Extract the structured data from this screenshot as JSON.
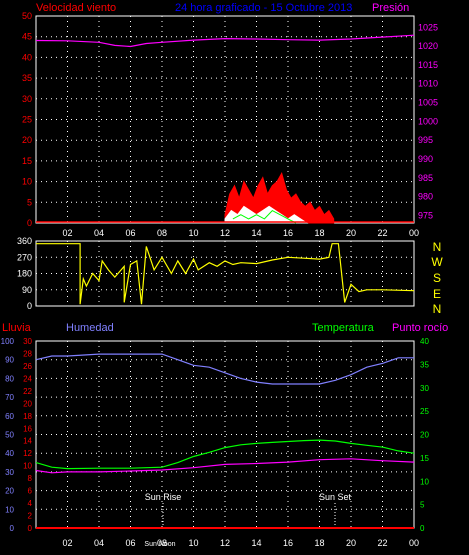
{
  "header": {
    "wind_label": "Velocidad viento",
    "title": "24 hora graficado - 15 Octubre 2013",
    "pressure_label": "Presión"
  },
  "middle": {
    "compass": [
      "N",
      "W",
      "S",
      "E",
      "N"
    ]
  },
  "bottom_header": {
    "rain_label": "Lluvia",
    "humidity_label": "Humedad",
    "temp_label": "Temperatura",
    "dew_label": "Punto rocío"
  },
  "annotations": {
    "sunrise": "Sun Rise",
    "sunset": "Sun Set",
    "noon": "Sun Noon"
  },
  "colors": {
    "wind_gust": "#ff0000",
    "wind_avg": "#ffffff",
    "wind_other": "#00ff00",
    "pressure": "#ff00ff",
    "direction": "#ffff00",
    "rain": "#ff0000",
    "humidity": "#8080ff",
    "temperature": "#00ff00",
    "dewpoint": "#ff00ff",
    "grid": "#ffffff"
  },
  "chart_data": [
    {
      "type": "line",
      "name": "wind-pressure",
      "x_ticks": [
        "02",
        "04",
        "06",
        "08",
        "10",
        "12",
        "14",
        "16",
        "18",
        "20",
        "22",
        "00"
      ],
      "y_left": {
        "ticks": [
          0,
          5,
          10,
          15,
          20,
          25,
          30,
          35,
          40,
          45,
          50
        ],
        "range": [
          0,
          50
        ]
      },
      "y_right": {
        "ticks": [
          975,
          980,
          985,
          990,
          995,
          1000,
          1005,
          1010,
          1015,
          1020,
          1025
        ],
        "range": [
          973,
          1028
        ]
      },
      "series": [
        {
          "key": "pressure",
          "axis": "right",
          "x": [
            0,
            2,
            4,
            5,
            6,
            7,
            8,
            10,
            12,
            14,
            16,
            18,
            20,
            22,
            24
          ],
          "y": [
            1021.5,
            1021.4,
            1021,
            1020.2,
            1019.9,
            1020.7,
            1021,
            1021.6,
            1022,
            1021.9,
            1021.7,
            1021.6,
            1021.9,
            1022.4,
            1022.9
          ]
        },
        {
          "key": "gust",
          "axis": "left",
          "x": [
            12,
            12.3,
            12.6,
            12.9,
            13.2,
            13.5,
            13.8,
            14.1,
            14.4,
            14.7,
            15,
            15.3,
            15.6,
            15.9,
            16.2,
            16.5,
            16.8,
            17.1,
            17.4,
            17.7,
            18,
            18.3,
            18.6,
            18.9
          ],
          "y": [
            2,
            7,
            9,
            6,
            10,
            8,
            6,
            9,
            11,
            7,
            9,
            10,
            12,
            8,
            6,
            7,
            5,
            4,
            5,
            3,
            4,
            2,
            3,
            1
          ]
        },
        {
          "key": "avg",
          "axis": "left",
          "x": [
            12,
            12.4,
            12.8,
            13.2,
            13.6,
            14,
            14.4,
            14.8,
            15.2,
            15.6,
            16,
            16.4,
            16.8,
            17.2
          ],
          "y": [
            1,
            3,
            2,
            4,
            3,
            2,
            3,
            4,
            3,
            2,
            1,
            2,
            1,
            0
          ]
        },
        {
          "key": "other",
          "axis": "left",
          "x": [
            12.5,
            13,
            13.5,
            14,
            14.5,
            15,
            15.5,
            16,
            16.5
          ],
          "y": [
            1,
            2,
            1,
            2,
            1,
            3,
            2,
            1,
            0
          ]
        }
      ]
    },
    {
      "type": "line",
      "name": "wind-direction",
      "x_ticks": [
        "02",
        "04",
        "06",
        "08",
        "10",
        "12",
        "14",
        "16",
        "18",
        "20",
        "22",
        "00"
      ],
      "y": {
        "ticks": [
          360,
          270,
          180,
          90,
          0
        ],
        "range": [
          0,
          360
        ]
      },
      "series": [
        {
          "key": "direction",
          "x": [
            0,
            2.8,
            2.8,
            3,
            3.2,
            3.6,
            4,
            4.2,
            4.6,
            5,
            5.6,
            5.6,
            6,
            6.4,
            6.7,
            7,
            7.5,
            8,
            8.6,
            9,
            9.5,
            10,
            10.3,
            11,
            11.5,
            12,
            12.5,
            13,
            14,
            15,
            16,
            17,
            18,
            18.6,
            18.8,
            19.2,
            19.6,
            20,
            20.5,
            21,
            22,
            24
          ],
          "y": [
            345,
            345,
            10,
            150,
            110,
            180,
            140,
            250,
            200,
            160,
            220,
            20,
            230,
            250,
            10,
            330,
            200,
            270,
            180,
            250,
            180,
            260,
            200,
            240,
            220,
            250,
            230,
            240,
            235,
            255,
            270,
            265,
            260,
            270,
            345,
            345,
            20,
            120,
            80,
            90,
            90,
            85
          ]
        }
      ]
    },
    {
      "type": "line",
      "name": "humidity-temperature",
      "x_ticks": [
        "02",
        "04",
        "06",
        "08",
        "10",
        "12",
        "14",
        "16",
        "18",
        "20",
        "22",
        "00"
      ],
      "y_hum": {
        "ticks": [
          0,
          10,
          20,
          30,
          40,
          50,
          60,
          70,
          80,
          90,
          100
        ],
        "range": [
          0,
          100
        ]
      },
      "y_rain": {
        "ticks": [
          0,
          2,
          4,
          6,
          8,
          10,
          12,
          14,
          16,
          18,
          20,
          22,
          24,
          26,
          28,
          30
        ],
        "range": [
          0,
          30
        ]
      },
      "y_temp": {
        "ticks": [
          0,
          5,
          10,
          15,
          20,
          25,
          30,
          35,
          40
        ],
        "range": [
          0,
          40
        ]
      },
      "series": [
        {
          "key": "humidity",
          "axis": "hum",
          "x": [
            0,
            1,
            2,
            4,
            6,
            8,
            9,
            10,
            11,
            12,
            13,
            14,
            15,
            16,
            17,
            18,
            19,
            20,
            21,
            22,
            23,
            24
          ],
          "y": [
            90,
            92,
            92,
            93,
            93,
            93,
            90,
            87,
            86,
            83,
            80,
            78,
            77,
            77,
            77,
            77,
            79,
            82,
            86,
            88,
            91,
            91
          ]
        },
        {
          "key": "temperature",
          "axis": "temp",
          "x": [
            0,
            1,
            2,
            4,
            6,
            8,
            9,
            10,
            11,
            12,
            13,
            14,
            15,
            16,
            17,
            18,
            19,
            20,
            21,
            22,
            23,
            24
          ],
          "y": [
            14,
            13,
            12.7,
            12.8,
            12.8,
            13,
            14,
            15.3,
            16.2,
            17.2,
            17.8,
            18.1,
            18.3,
            18.5,
            18.7,
            18.8,
            18.6,
            18.1,
            17.7,
            17.3,
            16.5,
            16
          ]
        },
        {
          "key": "dewpoint",
          "axis": "temp",
          "x": [
            0,
            1,
            2,
            4,
            6,
            8,
            10,
            12,
            14,
            16,
            18,
            20,
            22,
            24
          ],
          "y": [
            12.3,
            11.8,
            12,
            12,
            12.2,
            12.4,
            12.9,
            13.6,
            13.8,
            14.1,
            14.6,
            14.8,
            14.4,
            14.1
          ]
        },
        {
          "key": "rain",
          "axis": "rain",
          "x": [
            0,
            24
          ],
          "y": [
            0,
            0
          ]
        }
      ]
    }
  ]
}
